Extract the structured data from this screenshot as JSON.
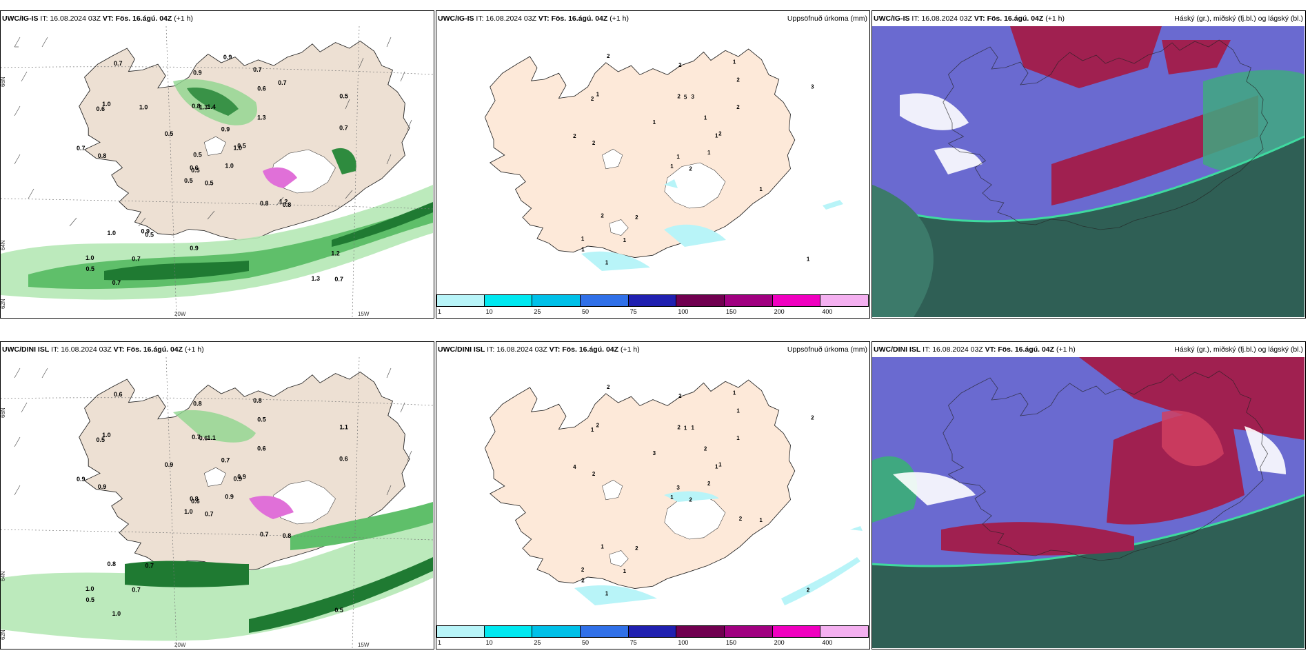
{
  "panels": [
    {
      "id": "ig-left",
      "model": "UWC/IG-IS",
      "it_label": "IT:",
      "it": "16.08.2024 03Z",
      "vt_label": "VT:",
      "vt": "Fös. 16.ágú. 04Z",
      "lead": "(+1 h)",
      "right": ""
    },
    {
      "id": "ig-mid",
      "model": "UWC/IG-IS",
      "it_label": "IT:",
      "it": "16.08.2024 03Z",
      "vt_label": "VT:",
      "vt": "Fös. 16.ágú. 04Z",
      "lead": "(+1 h)",
      "right": "Uppsöfnuð úrkoma (mm)"
    },
    {
      "id": "ig-right",
      "model": "UWC/IG-IS",
      "it_label": "IT:",
      "it": "16.08.2024 03Z",
      "vt_label": "VT:",
      "vt": "Fös. 16.ágú. 04Z",
      "lead": "(+1 h)",
      "right": "Háský (gr.), miðský (fj.bl.) og lágský (bl.)"
    },
    {
      "id": "dini-left",
      "model": "UWC/DINI ISL",
      "it_label": "IT:",
      "it": "16.08.2024 03Z",
      "vt_label": "VT:",
      "vt": "Fös. 16.ágú. 04Z",
      "lead": "(+1 h)",
      "right": ""
    },
    {
      "id": "dini-mid",
      "model": "UWC/DINI ISL",
      "it_label": "IT:",
      "it": "16.08.2024 03Z",
      "vt_label": "VT:",
      "vt": "Fös. 16.ágú. 04Z",
      "lead": "(+1 h)",
      "right": "Uppsöfnuð úrkoma (mm)"
    },
    {
      "id": "dini-right",
      "model": "UWC/DINI ISL",
      "it_label": "IT:",
      "it": "16.08.2024 03Z",
      "vt_label": "VT:",
      "vt": "Fös. 16.ágú. 04Z",
      "lead": "(+1 h)",
      "right": "Háský (gr.), miðský (fj.bl.) og lágský (bl.)"
    }
  ],
  "grid_labels": {
    "lat1": "66N",
    "lat2": "64N",
    "lat3": "62N",
    "lon1": "20W",
    "lon2": "15W"
  },
  "colorbar": {
    "ticks": [
      "1",
      "10",
      "25",
      "50",
      "75",
      "100",
      "150",
      "200",
      "400"
    ],
    "colors": [
      "#b8f4f8",
      "#00e8f0",
      "#00c0e8",
      "#3070e8",
      "#2020b0",
      "#700050",
      "#a00080",
      "#f000c0",
      "#f4b0f0"
    ]
  },
  "precip_labels_top": [
    "0.5",
    "0.6",
    "0.5",
    "1.0",
    "1.0",
    "0.5",
    "0.7",
    "1.4",
    "0.6",
    "1.0",
    "0.7",
    "0.7",
    "0.8",
    "0.5",
    "0.5",
    "1.3",
    "0.7",
    "0.8",
    "0.9",
    "1.0",
    "0.5",
    "0.5",
    "0.7",
    "1.3",
    "0.5",
    "0.8",
    "1.0",
    "0.9",
    "0.7",
    "0.8",
    "0.7",
    "0.6",
    "0.9",
    "0.5",
    "1.0",
    "0.7",
    "0.9",
    "1.3",
    "1.2",
    "1.2",
    "0.9"
  ],
  "precip_labels_bottom": [
    "0.7",
    "0.5",
    "0.6",
    "1.0",
    "0.9",
    "0.7",
    "0.8",
    "1.1",
    "0.5",
    "0.9",
    "0.6",
    "0.5",
    "0.9",
    "1.1",
    "1.0",
    "0.6",
    "1.0",
    "0.7",
    "0.7",
    "0.8",
    "0.9",
    "0.5",
    "0.7",
    "0.6",
    "0.9",
    "0.8",
    "1.0",
    "0.8",
    "0.9",
    "0.7",
    "0.6",
    "0.8"
  ],
  "accum_labels_top": [
    "2",
    "2",
    "1",
    "1",
    "1",
    "2",
    "1",
    "3",
    "2",
    "1",
    "2",
    "1",
    "2",
    "3",
    "1",
    "2",
    "1",
    "2",
    "1",
    "2",
    "1",
    "1",
    "1",
    "5",
    "2",
    "1",
    "1",
    "2",
    "2"
  ],
  "accum_labels_bottom": [
    "2",
    "1",
    "3",
    "2",
    "1",
    "2",
    "1",
    "1",
    "1",
    "2",
    "2",
    "2",
    "2",
    "2",
    "1",
    "1",
    "1",
    "2",
    "2",
    "1",
    "3",
    "2",
    "1",
    "1",
    "1",
    "1",
    "2",
    "2",
    "4",
    "2"
  ]
}
